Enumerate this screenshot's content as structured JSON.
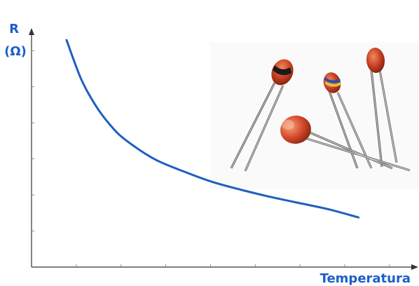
{
  "chart_data": {
    "type": "line",
    "title": "",
    "ylabel_line1": "R",
    "ylabel_line2": "(Ω)",
    "xlabel": "Temperatura",
    "grid": false,
    "legend": "none",
    "series": [
      {
        "color": "#1f5fbf",
        "x": [
          0.0,
          0.05,
          0.1,
          0.15,
          0.2,
          0.3,
          0.4,
          0.5,
          0.6,
          0.7,
          0.8,
          0.9,
          1.0
        ],
        "y": [
          1.0,
          0.78,
          0.63,
          0.52,
          0.44,
          0.33,
          0.26,
          0.2,
          0.155,
          0.115,
          0.08,
          0.045,
          0.0
        ]
      }
    ],
    "xlim": [
      -0.12,
      1.2
    ],
    "ylim": [
      -0.28,
      1.06
    ],
    "axis_color": "#333333",
    "label_color": "#1a5fc8"
  },
  "photo": {
    "subject": "thermistors",
    "body_colors": [
      "#c23b1f",
      "#e05a2a",
      "#d4472a",
      "#c8401f"
    ],
    "band_colors": [
      "#1a1a1a",
      "#2d4db0",
      "#e0c040"
    ]
  }
}
